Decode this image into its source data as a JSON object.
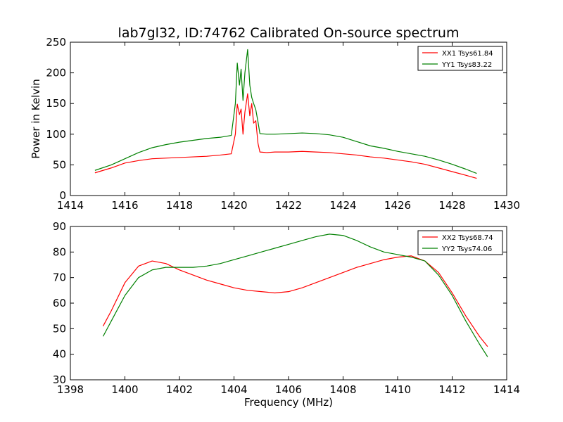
{
  "figure": {
    "title": "lab7gl32, ID:74762 Calibrated On-source spectrum",
    "shared_ylabel": "Power in Kelvin",
    "shared_xlabel": "Frequency (MHz)"
  },
  "chart_data": [
    {
      "type": "line",
      "xlim": [
        1414,
        1430
      ],
      "ylim": [
        0,
        250
      ],
      "xticks": [
        1414,
        1416,
        1418,
        1420,
        1422,
        1424,
        1426,
        1428,
        1430
      ],
      "yticks": [
        0,
        50,
        100,
        150,
        200,
        250
      ],
      "grid": false,
      "legend_position": "top-right",
      "series": [
        {
          "name": "XX1 Tsys61.84",
          "color": "#ff0000",
          "x": [
            1414.9,
            1415.5,
            1416.0,
            1416.5,
            1417.0,
            1417.5,
            1418.0,
            1418.5,
            1419.0,
            1419.5,
            1419.9,
            1420.05,
            1420.12,
            1420.2,
            1420.26,
            1420.33,
            1420.4,
            1420.5,
            1420.58,
            1420.65,
            1420.72,
            1420.8,
            1420.88,
            1420.95,
            1421.2,
            1421.5,
            1422.0,
            1422.5,
            1423.0,
            1423.5,
            1424.0,
            1424.5,
            1425.0,
            1425.5,
            1426.0,
            1426.5,
            1427.0,
            1427.5,
            1428.0,
            1428.5,
            1428.9
          ],
          "values": [
            37,
            45,
            53,
            57,
            60,
            61,
            62,
            63,
            64,
            66,
            68,
            100,
            149,
            132,
            141,
            100,
            136,
            166,
            130,
            150,
            118,
            122,
            85,
            71,
            70,
            71,
            71,
            72,
            71,
            70,
            68,
            66,
            63,
            61,
            58,
            55,
            51,
            45,
            39,
            33,
            28
          ]
        },
        {
          "name": "YY1 Tsys83.22",
          "color": "#008000",
          "x": [
            1414.9,
            1415.5,
            1416.0,
            1416.5,
            1417.0,
            1417.5,
            1418.0,
            1418.5,
            1419.0,
            1419.5,
            1419.9,
            1420.05,
            1420.12,
            1420.2,
            1420.26,
            1420.33,
            1420.4,
            1420.5,
            1420.58,
            1420.65,
            1420.72,
            1420.8,
            1420.88,
            1420.95,
            1421.2,
            1421.5,
            1422.0,
            1422.5,
            1423.0,
            1423.5,
            1424.0,
            1424.5,
            1425.0,
            1425.5,
            1426.0,
            1426.5,
            1427.0,
            1427.5,
            1428.0,
            1428.5,
            1428.9
          ],
          "values": [
            41,
            50,
            60,
            70,
            78,
            83,
            87,
            90,
            93,
            95,
            98,
            150,
            216,
            180,
            206,
            155,
            200,
            238,
            180,
            160,
            150,
            140,
            120,
            101,
            100,
            100,
            101,
            102,
            101,
            99,
            95,
            88,
            81,
            77,
            72,
            68,
            64,
            58,
            51,
            43,
            36
          ]
        }
      ]
    },
    {
      "type": "line",
      "xlabel": "Frequency (MHz)",
      "xlim": [
        1398,
        1414
      ],
      "ylim": [
        30,
        90
      ],
      "xticks": [
        1398,
        1400,
        1402,
        1404,
        1406,
        1408,
        1410,
        1412,
        1414
      ],
      "yticks": [
        30,
        40,
        50,
        60,
        70,
        80,
        90
      ],
      "grid": false,
      "legend_position": "top-right",
      "series": [
        {
          "name": "XX2 Tsys68.74",
          "color": "#ff0000",
          "x": [
            1399.2,
            1399.5,
            1400.0,
            1400.5,
            1401.0,
            1401.5,
            1402.0,
            1402.5,
            1403.0,
            1403.5,
            1404.0,
            1404.5,
            1405.0,
            1405.5,
            1406.0,
            1406.5,
            1407.0,
            1407.5,
            1408.0,
            1408.5,
            1409.0,
            1409.5,
            1410.0,
            1410.5,
            1411.0,
            1411.5,
            1412.0,
            1412.5,
            1413.0,
            1413.3
          ],
          "values": [
            51,
            57,
            68,
            74.5,
            76.5,
            75.5,
            73,
            71,
            69,
            67.5,
            66,
            65,
            64.5,
            64,
            64.5,
            66,
            68,
            70,
            72,
            74,
            75.5,
            77,
            78,
            78.5,
            76.5,
            72,
            64,
            55,
            47,
            43
          ]
        },
        {
          "name": "YY2 Tsys74.06",
          "color": "#008000",
          "x": [
            1399.2,
            1399.5,
            1400.0,
            1400.5,
            1401.0,
            1401.5,
            1402.0,
            1402.5,
            1403.0,
            1403.5,
            1404.0,
            1404.5,
            1405.0,
            1405.5,
            1406.0,
            1406.5,
            1407.0,
            1407.5,
            1408.0,
            1408.5,
            1409.0,
            1409.5,
            1410.0,
            1410.5,
            1411.0,
            1411.5,
            1412.0,
            1412.5,
            1413.0,
            1413.3
          ],
          "values": [
            47,
            53,
            63,
            70,
            73,
            74,
            74,
            74,
            74.5,
            75.5,
            77,
            78.5,
            80,
            81.5,
            83,
            84.5,
            86,
            87,
            86.5,
            84.5,
            82,
            80,
            79,
            78,
            76.5,
            71,
            63,
            53,
            44,
            39
          ]
        }
      ]
    }
  ]
}
